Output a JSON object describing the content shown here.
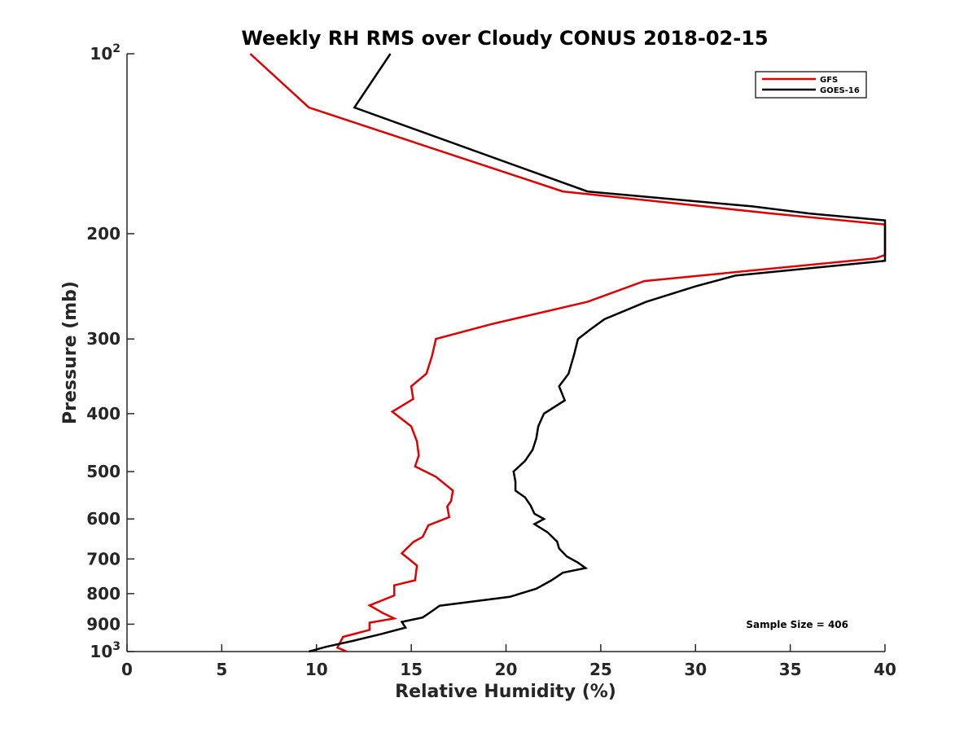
{
  "chart_data": {
    "type": "line",
    "title": "Weekly RH RMS over Cloudy CONUS 2018-02-15",
    "xlabel": "Relative Humidity (%)",
    "ylabel": "Pressure (mb)",
    "xlim": [
      0,
      40
    ],
    "ylim": [
      100,
      1000
    ],
    "y_scale": "log",
    "y_reversed": true,
    "x_ticks": [
      0,
      5,
      10,
      15,
      20,
      25,
      30,
      35,
      40
    ],
    "x_tick_labels": [
      "0",
      "5",
      "10",
      "15",
      "20",
      "25",
      "30",
      "35",
      "40"
    ],
    "y_ticks": [
      100,
      200,
      300,
      400,
      500,
      600,
      700,
      800,
      900,
      1000
    ],
    "y_tick_labels": [
      {
        "base": "10",
        "exp": "2"
      },
      {
        "base": "200"
      },
      {
        "base": "300"
      },
      {
        "base": "400"
      },
      {
        "base": "500"
      },
      {
        "base": "600"
      },
      {
        "base": "700"
      },
      {
        "base": "800"
      },
      {
        "base": "900"
      },
      {
        "base": "10",
        "exp": "3"
      }
    ],
    "legend_position": "top-right",
    "annotation": "Sample Size = 406",
    "series": [
      {
        "name": "GFS",
        "color": "#e00000",
        "points": [
          [
            6.5,
            100
          ],
          [
            9.6,
            123
          ],
          [
            23.0,
            170
          ],
          [
            34.0,
            185
          ],
          [
            40.0,
            193
          ],
          [
            40.0,
            217
          ],
          [
            39.5,
            220
          ],
          [
            27.3,
            240
          ],
          [
            24.3,
            260
          ],
          [
            19.3,
            283
          ],
          [
            16.3,
            300
          ],
          [
            16.1,
            320
          ],
          [
            15.8,
            343
          ],
          [
            15.0,
            360
          ],
          [
            15.1,
            378
          ],
          [
            14.0,
            397
          ],
          [
            15.0,
            420
          ],
          [
            15.3,
            445
          ],
          [
            15.4,
            470
          ],
          [
            15.2,
            490
          ],
          [
            16.3,
            510
          ],
          [
            17.2,
            538
          ],
          [
            17.1,
            560
          ],
          [
            16.9,
            572
          ],
          [
            17.0,
            596
          ],
          [
            15.9,
            615
          ],
          [
            15.6,
            643
          ],
          [
            15.1,
            656
          ],
          [
            14.5,
            685
          ],
          [
            15.3,
            718
          ],
          [
            15.2,
            760
          ],
          [
            14.1,
            775
          ],
          [
            14.1,
            806
          ],
          [
            12.8,
            837
          ],
          [
            13.5,
            862
          ],
          [
            14.1,
            880
          ],
          [
            12.8,
            895
          ],
          [
            12.8,
            920
          ],
          [
            11.4,
            945
          ],
          [
            11.1,
            985
          ],
          [
            11.6,
            1000
          ]
        ]
      },
      {
        "name": "GOES-16",
        "color": "#000000",
        "points": [
          [
            13.9,
            100
          ],
          [
            12.0,
            123
          ],
          [
            24.3,
            170
          ],
          [
            33.0,
            180
          ],
          [
            36.0,
            185
          ],
          [
            40.0,
            190
          ],
          [
            40.0,
            222
          ],
          [
            32.1,
            235
          ],
          [
            30.0,
            245
          ],
          [
            27.4,
            260
          ],
          [
            25.2,
            278
          ],
          [
            24.4,
            290
          ],
          [
            23.8,
            300
          ],
          [
            23.6,
            318
          ],
          [
            23.3,
            343
          ],
          [
            22.8,
            360
          ],
          [
            23.1,
            380
          ],
          [
            22.0,
            400
          ],
          [
            21.7,
            420
          ],
          [
            21.6,
            440
          ],
          [
            21.4,
            460
          ],
          [
            21.0,
            480
          ],
          [
            20.4,
            500
          ],
          [
            20.5,
            520
          ],
          [
            20.5,
            538
          ],
          [
            21.0,
            552
          ],
          [
            21.3,
            570
          ],
          [
            21.5,
            588
          ],
          [
            22.0,
            600
          ],
          [
            21.5,
            612
          ],
          [
            22.2,
            632
          ],
          [
            22.7,
            655
          ],
          [
            22.8,
            672
          ],
          [
            23.2,
            693
          ],
          [
            23.8,
            710
          ],
          [
            24.2,
            725
          ],
          [
            23.0,
            738
          ],
          [
            22.4,
            760
          ],
          [
            21.6,
            785
          ],
          [
            20.2,
            810
          ],
          [
            16.5,
            838
          ],
          [
            16.0,
            860
          ],
          [
            15.6,
            877
          ],
          [
            14.5,
            892
          ],
          [
            14.7,
            912
          ],
          [
            13.4,
            935
          ],
          [
            11.9,
            960
          ],
          [
            10.5,
            982
          ],
          [
            9.6,
            1000
          ]
        ]
      }
    ]
  }
}
